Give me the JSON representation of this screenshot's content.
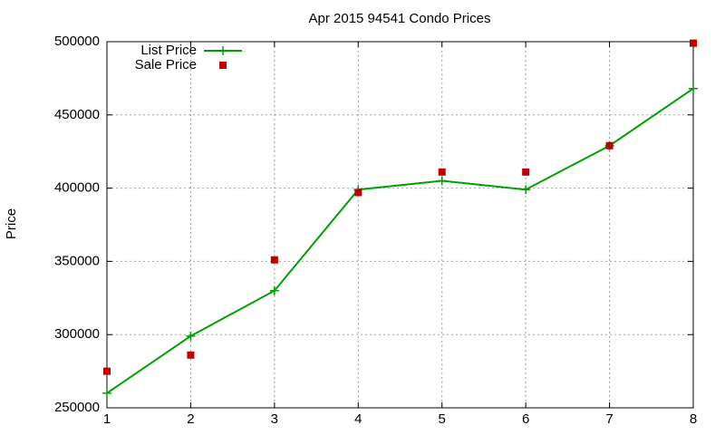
{
  "chart_data": {
    "type": "line",
    "title": "Apr 2015 94541 Condo Prices",
    "y_label": "Price",
    "x": [
      1,
      2,
      3,
      4,
      5,
      6,
      7,
      8
    ],
    "series": [
      {
        "name": "List Price",
        "color": "#00a000",
        "marker": "plus",
        "line": true,
        "values": [
          260000,
          299000,
          330000,
          399000,
          405000,
          399000,
          429000,
          468000
        ]
      },
      {
        "name": "Sale Price",
        "color": "#c00000",
        "marker": "square",
        "line": false,
        "values": [
          275000,
          286000,
          351000,
          397000,
          411000,
          411000,
          429000,
          499000
        ]
      }
    ],
    "xlim": [
      1,
      8
    ],
    "xticks": [
      1,
      2,
      3,
      4,
      5,
      6,
      7,
      8
    ],
    "ylim": [
      250000,
      500000
    ],
    "yticks": [
      250000,
      300000,
      350000,
      400000,
      450000,
      500000
    ],
    "grid": true,
    "legend": "top-left"
  }
}
